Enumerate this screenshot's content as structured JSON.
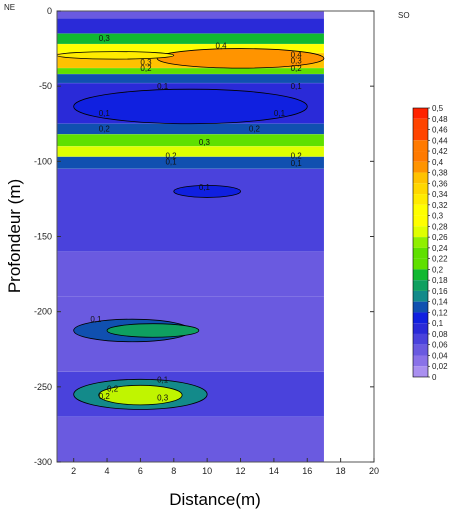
{
  "chart_data": {
    "type": "heatmap",
    "title": "",
    "xlabel": "Distance(m)",
    "ylabel": "Profondeur (m)",
    "xlim": [
      1,
      20
    ],
    "ylim": [
      -300,
      0
    ],
    "data_extent_x": [
      1,
      17
    ],
    "x_ticks": [
      2,
      4,
      6,
      8,
      10,
      12,
      14,
      16,
      18,
      20
    ],
    "y_ticks": [
      0,
      -50,
      -100,
      -150,
      -200,
      -250,
      -300
    ],
    "corner_labels": {
      "left": "NE",
      "right": "SO"
    },
    "colorbar": {
      "min": 0,
      "max": 0.5,
      "step": 0.02,
      "labels": [
        "0,5",
        "0,48",
        "0,46",
        "0,44",
        "0,42",
        "0,4",
        "0,38",
        "0,36",
        "0,34",
        "0,32",
        "0,3",
        "0,28",
        "0,26",
        "0,24",
        "0,22",
        "0,2",
        "0,18",
        "0,16",
        "0,14",
        "0,12",
        "0,1",
        "0,08",
        "0,06",
        "0,04",
        "0,02",
        "0"
      ],
      "colors": [
        "#ff0000",
        "#ff2200",
        "#ff4400",
        "#ff6600",
        "#ff7a00",
        "#ff9400",
        "#ffac00",
        "#ffc200",
        "#ffd700",
        "#ffeb00",
        "#ffff00",
        "#e0ff00",
        "#c0f500",
        "#90ef00",
        "#5fe000",
        "#2ccf10",
        "#10b830",
        "#0fa060",
        "#138a8a",
        "#1050b0",
        "#1020e0",
        "#2a2ad8",
        "#4a42dc",
        "#6a5ae0",
        "#8a72e8",
        "#aa90f0"
      ]
    },
    "bands": [
      {
        "depth": [
          0,
          -5
        ],
        "value": 0.04
      },
      {
        "depth": [
          -5,
          -15
        ],
        "value": 0.08
      },
      {
        "depth": [
          -15,
          -22
        ],
        "value": 0.18
      },
      {
        "depth": [
          -22,
          -28
        ],
        "value": 0.3
      },
      {
        "depth": [
          -28,
          -38
        ],
        "value": 0.37
      },
      {
        "depth": [
          -38,
          -42
        ],
        "value": 0.22
      },
      {
        "depth": [
          -42,
          -48
        ],
        "value": 0.12
      },
      {
        "depth": [
          -48,
          -75
        ],
        "value": 0.09
      },
      {
        "depth": [
          -75,
          -82
        ],
        "value": 0.12
      },
      {
        "depth": [
          -82,
          -90
        ],
        "value": 0.22
      },
      {
        "depth": [
          -90,
          -97
        ],
        "value": 0.28
      },
      {
        "depth": [
          -97,
          -105
        ],
        "value": 0.12
      },
      {
        "depth": [
          -105,
          -160
        ],
        "value": 0.06
      },
      {
        "depth": [
          -160,
          -190
        ],
        "value": 0.04
      },
      {
        "depth": [
          -190,
          -240
        ],
        "value": 0.05
      },
      {
        "depth": [
          -240,
          -270
        ],
        "value": 0.06
      },
      {
        "depth": [
          -270,
          -300
        ],
        "value": 0.04
      }
    ],
    "anomalies": [
      {
        "x": [
          7,
          17
        ],
        "depth": [
          -25,
          -38
        ],
        "value": 0.4
      },
      {
        "x": [
          1,
          8
        ],
        "depth": [
          -27,
          -32
        ],
        "value": 0.32
      },
      {
        "x": [
          2,
          16
        ],
        "depth": [
          -52,
          -75
        ],
        "value": 0.1
      },
      {
        "x": [
          8,
          12
        ],
        "depth": [
          -116,
          -124
        ],
        "value": 0.1
      },
      {
        "x": [
          2,
          9
        ],
        "depth": [
          -205,
          -220
        ],
        "value": 0.12
      },
      {
        "x": [
          4,
          9.5
        ],
        "depth": [
          -208,
          -217
        ],
        "value": 0.16
      },
      {
        "x": [
          2,
          10
        ],
        "depth": [
          -245,
          -265
        ],
        "value": 0.14
      },
      {
        "x": [
          3.5,
          8.5
        ],
        "depth": [
          -249,
          -262
        ],
        "value": 0.26
      }
    ],
    "contour_labels": [
      {
        "x": 3.5,
        "y": -20,
        "text": "0,3"
      },
      {
        "x": 10.5,
        "y": -25,
        "text": "0,4"
      },
      {
        "x": 15,
        "y": -31,
        "text": "0,4"
      },
      {
        "x": 15,
        "y": -35,
        "text": "0,3"
      },
      {
        "x": 6,
        "y": -36,
        "text": "0,3"
      },
      {
        "x": 6,
        "y": -40,
        "text": "0,2"
      },
      {
        "x": 15,
        "y": -40,
        "text": "0,2"
      },
      {
        "x": 7,
        "y": -52,
        "text": "0,1"
      },
      {
        "x": 15,
        "y": -52,
        "text": "0,1"
      },
      {
        "x": 3.5,
        "y": -70,
        "text": "0,1"
      },
      {
        "x": 14,
        "y": -70,
        "text": "0,1"
      },
      {
        "x": 3.5,
        "y": -80,
        "text": "0,2"
      },
      {
        "x": 12.5,
        "y": -80,
        "text": "0,2"
      },
      {
        "x": 9.5,
        "y": -89,
        "text": "0,3"
      },
      {
        "x": 7.5,
        "y": -98,
        "text": "0,2"
      },
      {
        "x": 15,
        "y": -98,
        "text": "0,2"
      },
      {
        "x": 7.5,
        "y": -102,
        "text": "0,1"
      },
      {
        "x": 15,
        "y": -103,
        "text": "0,1"
      },
      {
        "x": 9.5,
        "y": -119,
        "text": "0,1"
      },
      {
        "x": 3,
        "y": -207,
        "text": "0,1"
      },
      {
        "x": 7,
        "y": -247,
        "text": "0,1"
      },
      {
        "x": 4,
        "y": -253,
        "text": "0,2"
      },
      {
        "x": 3.5,
        "y": -258,
        "text": "0,2"
      },
      {
        "x": 7,
        "y": -259,
        "text": "0,3"
      }
    ]
  }
}
